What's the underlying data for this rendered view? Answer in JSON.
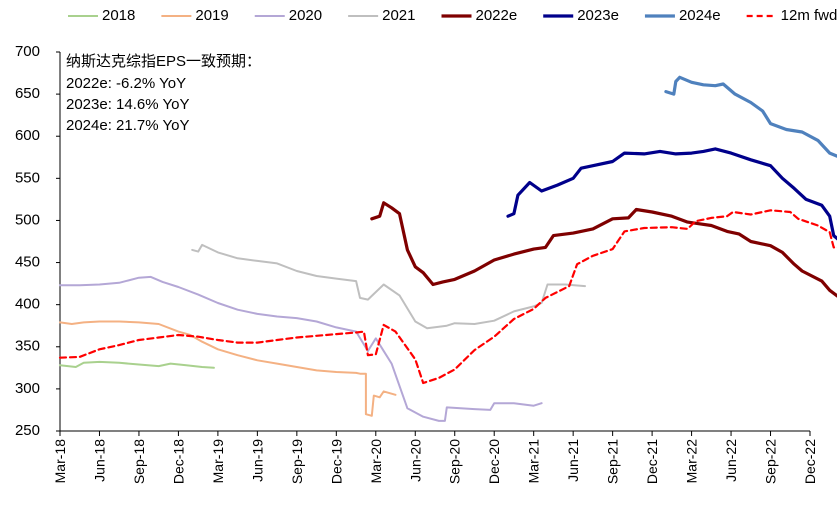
{
  "chart_data": {
    "type": "line",
    "title": "",
    "xlabel": "",
    "ylabel": "",
    "ylim": [
      250,
      700
    ],
    "yticks": [
      250,
      300,
      350,
      400,
      450,
      500,
      550,
      600,
      650,
      700
    ],
    "x_categories": [
      "Mar-18",
      "Jun-18",
      "Sep-18",
      "Dec-18",
      "Mar-19",
      "Jun-19",
      "Sep-19",
      "Dec-19",
      "Mar-20",
      "Jun-20",
      "Sep-20",
      "Dec-20",
      "Mar-21",
      "Jun-21",
      "Sep-21",
      "Dec-21",
      "Mar-22",
      "Jun-22",
      "Sep-22",
      "Dec-22"
    ],
    "legend_position": "top",
    "annotation": {
      "title": "纳斯达克综指EPS一致预期：",
      "lines": [
        "2022e: -6.2% YoY",
        "2023e: 14.6% YoY",
        "2024e: 21.7% YoY"
      ]
    },
    "series": [
      {
        "name": "2018",
        "color": "#a9d18e",
        "width": 2,
        "dash": "",
        "points": [
          [
            0,
            328
          ],
          [
            0.4,
            326
          ],
          [
            0.6,
            331
          ],
          [
            1,
            332
          ],
          [
            1.5,
            331
          ],
          [
            2,
            329
          ],
          [
            2.5,
            327
          ],
          [
            2.8,
            330
          ],
          [
            3.2,
            328
          ],
          [
            3.6,
            326
          ],
          [
            3.9,
            325
          ]
        ]
      },
      {
        "name": "2019",
        "color": "#f4b183",
        "width": 2,
        "dash": "",
        "points": [
          [
            0,
            379
          ],
          [
            0.3,
            377
          ],
          [
            0.6,
            379
          ],
          [
            1,
            380
          ],
          [
            1.5,
            380
          ],
          [
            2,
            379
          ],
          [
            2.5,
            377
          ],
          [
            3,
            368
          ],
          [
            3.3,
            364
          ],
          [
            3.6,
            356
          ],
          [
            4,
            347
          ],
          [
            4.5,
            340
          ],
          [
            5,
            334
          ],
          [
            5.5,
            330
          ],
          [
            6,
            326
          ],
          [
            6.5,
            322
          ],
          [
            7,
            320
          ],
          [
            7.5,
            319
          ],
          [
            7.6,
            318
          ],
          [
            7.75,
            318
          ],
          [
            7.75,
            270
          ],
          [
            7.9,
            268
          ],
          [
            7.95,
            292
          ],
          [
            8.1,
            290
          ],
          [
            8.2,
            297
          ],
          [
            8.5,
            293
          ]
        ]
      },
      {
        "name": "2020",
        "color": "#b4a7d6",
        "width": 2,
        "dash": "",
        "points": [
          [
            0,
            423
          ],
          [
            0.5,
            423
          ],
          [
            1,
            424
          ],
          [
            1.5,
            426
          ],
          [
            2,
            432
          ],
          [
            2.3,
            433
          ],
          [
            2.6,
            427
          ],
          [
            3,
            421
          ],
          [
            3.5,
            412
          ],
          [
            4,
            402
          ],
          [
            4.5,
            394
          ],
          [
            5,
            389
          ],
          [
            5.5,
            386
          ],
          [
            6,
            384
          ],
          [
            6.5,
            380
          ],
          [
            7,
            373
          ],
          [
            7.5,
            368
          ],
          [
            7.8,
            345
          ],
          [
            8,
            360
          ],
          [
            8.4,
            330
          ],
          [
            8.8,
            277
          ],
          [
            9.2,
            267
          ],
          [
            9.6,
            262
          ],
          [
            9.75,
            262
          ],
          [
            9.8,
            278
          ],
          [
            10.5,
            276
          ],
          [
            10.9,
            275
          ],
          [
            11,
            283
          ],
          [
            11.5,
            283
          ],
          [
            12,
            280
          ],
          [
            12.2,
            283
          ]
        ]
      },
      {
        "name": "2021",
        "color": "#bfbfbf",
        "width": 2,
        "dash": "",
        "points": [
          [
            3.35,
            465
          ],
          [
            3.5,
            463
          ],
          [
            3.6,
            471
          ],
          [
            4,
            462
          ],
          [
            4.5,
            455
          ],
          [
            5,
            452
          ],
          [
            5.5,
            449
          ],
          [
            6,
            440
          ],
          [
            6.5,
            434
          ],
          [
            7,
            431
          ],
          [
            7.5,
            428
          ],
          [
            7.6,
            408
          ],
          [
            7.8,
            406
          ],
          [
            8.2,
            424
          ],
          [
            8.6,
            411
          ],
          [
            9,
            380
          ],
          [
            9.3,
            372
          ],
          [
            9.8,
            375
          ],
          [
            10,
            378
          ],
          [
            10.5,
            377
          ],
          [
            11,
            381
          ],
          [
            11.5,
            392
          ],
          [
            12,
            398
          ],
          [
            12.2,
            402
          ],
          [
            12.35,
            424
          ],
          [
            12.8,
            424
          ],
          [
            13.3,
            422
          ]
        ]
      },
      {
        "name": "2022e",
        "color": "#7f0000",
        "width": 3.2,
        "dash": "",
        "points": [
          [
            7.9,
            502
          ],
          [
            8.1,
            505
          ],
          [
            8.2,
            521
          ],
          [
            8.4,
            515
          ],
          [
            8.6,
            508
          ],
          [
            8.8,
            465
          ],
          [
            9,
            445
          ],
          [
            9.2,
            438
          ],
          [
            9.45,
            424
          ],
          [
            9.7,
            427
          ],
          [
            10,
            430
          ],
          [
            10.5,
            440
          ],
          [
            11,
            453
          ],
          [
            11.5,
            460
          ],
          [
            12,
            466
          ],
          [
            12.3,
            468
          ],
          [
            12.5,
            482
          ],
          [
            13,
            485
          ],
          [
            13.5,
            490
          ],
          [
            14,
            502
          ],
          [
            14.4,
            503
          ],
          [
            14.6,
            513
          ],
          [
            15,
            510
          ],
          [
            15.5,
            505
          ],
          [
            15.9,
            498
          ],
          [
            16.2,
            496
          ],
          [
            16.5,
            494
          ],
          [
            16.9,
            487
          ],
          [
            17.2,
            484
          ],
          [
            17.5,
            475
          ],
          [
            18,
            470
          ],
          [
            18.3,
            462
          ],
          [
            18.6,
            448
          ],
          [
            18.8,
            440
          ],
          [
            19.3,
            428
          ],
          [
            19.5,
            417
          ],
          [
            19.7,
            410
          ],
          [
            19.8,
            413
          ],
          [
            20,
            413
          ]
        ]
      },
      {
        "name": "2023e",
        "color": "#00008b",
        "width": 3.2,
        "dash": "",
        "points": [
          [
            11.35,
            505
          ],
          [
            11.5,
            508
          ],
          [
            11.6,
            530
          ],
          [
            11.9,
            545
          ],
          [
            12.2,
            535
          ],
          [
            12.6,
            542
          ],
          [
            13,
            550
          ],
          [
            13.2,
            562
          ],
          [
            13.5,
            565
          ],
          [
            14,
            570
          ],
          [
            14.3,
            580
          ],
          [
            14.8,
            579
          ],
          [
            15.2,
            582
          ],
          [
            15.6,
            579
          ],
          [
            16,
            580
          ],
          [
            16.3,
            582
          ],
          [
            16.6,
            585
          ],
          [
            17,
            580
          ],
          [
            17.5,
            572
          ],
          [
            18,
            565
          ],
          [
            18.3,
            550
          ],
          [
            18.6,
            538
          ],
          [
            18.9,
            525
          ],
          [
            19.3,
            518
          ],
          [
            19.5,
            505
          ],
          [
            19.6,
            482
          ],
          [
            19.8,
            474
          ],
          [
            20,
            472
          ]
        ]
      },
      {
        "name": "2024e",
        "color": "#4f81bd",
        "width": 3.2,
        "dash": "",
        "points": [
          [
            15.35,
            653
          ],
          [
            15.55,
            650
          ],
          [
            15.6,
            665
          ],
          [
            15.7,
            670
          ],
          [
            16,
            664
          ],
          [
            16.3,
            661
          ],
          [
            16.6,
            660
          ],
          [
            16.8,
            662
          ],
          [
            17.1,
            650
          ],
          [
            17.5,
            640
          ],
          [
            17.8,
            630
          ],
          [
            18,
            615
          ],
          [
            18.4,
            608
          ],
          [
            18.8,
            605
          ],
          [
            19.2,
            595
          ],
          [
            19.5,
            580
          ],
          [
            19.8,
            574
          ],
          [
            20,
            576
          ]
        ]
      },
      {
        "name": "12m fwd",
        "color": "#ff0000",
        "width": 2.2,
        "dash": "6,4",
        "points": [
          [
            0,
            337
          ],
          [
            0.5,
            338
          ],
          [
            1,
            347
          ],
          [
            1.5,
            352
          ],
          [
            2,
            358
          ],
          [
            2.5,
            361
          ],
          [
            3,
            364
          ],
          [
            3.5,
            362
          ],
          [
            4,
            358
          ],
          [
            4.5,
            355
          ],
          [
            5,
            355
          ],
          [
            5.5,
            358
          ],
          [
            6,
            361
          ],
          [
            6.5,
            363
          ],
          [
            7,
            365
          ],
          [
            7.5,
            367
          ],
          [
            7.7,
            368
          ],
          [
            7.8,
            340
          ],
          [
            8,
            341
          ],
          [
            8.2,
            376
          ],
          [
            8.5,
            368
          ],
          [
            9,
            335
          ],
          [
            9.2,
            307
          ],
          [
            9.6,
            313
          ],
          [
            10,
            323
          ],
          [
            10.5,
            346
          ],
          [
            11,
            362
          ],
          [
            11.5,
            383
          ],
          [
            12,
            395
          ],
          [
            12.3,
            408
          ],
          [
            12.6,
            415
          ],
          [
            12.9,
            422
          ],
          [
            13.1,
            448
          ],
          [
            13.5,
            458
          ],
          [
            14,
            466
          ],
          [
            14.3,
            487
          ],
          [
            14.8,
            491
          ],
          [
            15.5,
            492
          ],
          [
            15.9,
            490
          ],
          [
            16.1,
            499
          ],
          [
            16.5,
            503
          ],
          [
            16.9,
            505
          ],
          [
            17.05,
            510
          ],
          [
            17.5,
            507
          ],
          [
            18,
            512
          ],
          [
            18.5,
            510
          ],
          [
            18.7,
            502
          ],
          [
            19.2,
            494
          ],
          [
            19.5,
            486
          ],
          [
            19.6,
            468
          ],
          [
            20,
            468
          ]
        ]
      }
    ]
  }
}
